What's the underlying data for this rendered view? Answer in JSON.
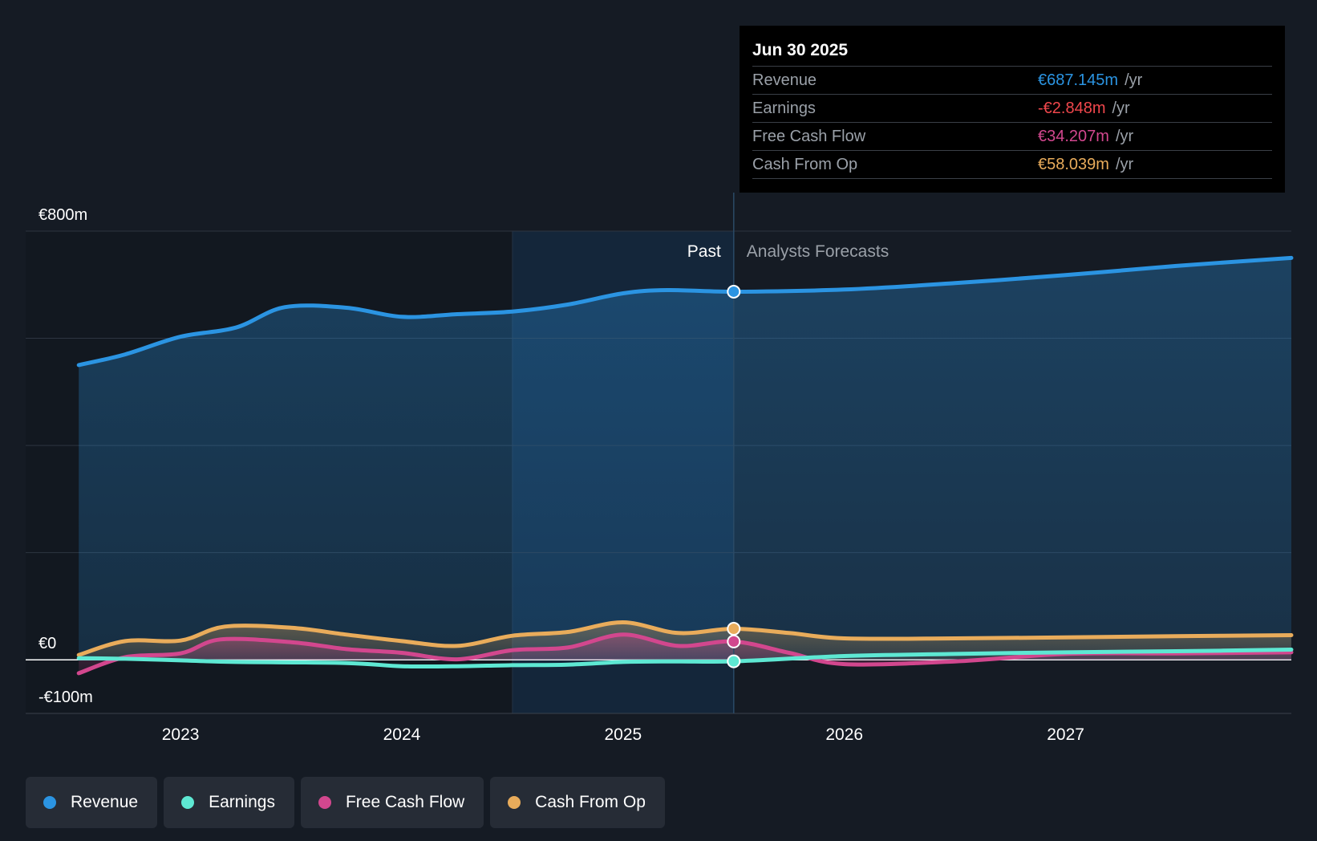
{
  "colors": {
    "revenue": "#2b94e2",
    "earnings": "#5ee8d3",
    "free_cash_flow": "#d2478e",
    "cash_from_op": "#e9ac5b",
    "earnings_value_text": "#f0474c"
  },
  "tooltip": {
    "date": "Jun 30 2025",
    "rows": [
      {
        "label": "Revenue",
        "value": "€687.145m",
        "unit": "/yr"
      },
      {
        "label": "Earnings",
        "value": "-€2.848m",
        "unit": "/yr"
      },
      {
        "label": "Free Cash Flow",
        "value": "€34.207m",
        "unit": "/yr"
      },
      {
        "label": "Cash From Op",
        "value": "€58.039m",
        "unit": "/yr"
      }
    ]
  },
  "labels": {
    "past": "Past",
    "forecast": "Analysts Forecasts"
  },
  "legend": [
    {
      "label": "Revenue",
      "series": "revenue"
    },
    {
      "label": "Earnings",
      "series": "earnings"
    },
    {
      "label": "Free Cash Flow",
      "series": "free_cash_flow"
    },
    {
      "label": "Cash From Op",
      "series": "cash_from_op"
    }
  ],
  "chart_data": {
    "type": "line",
    "y_tick_labels": [
      {
        "value": 800,
        "label": "€800m"
      },
      {
        "value": 0,
        "label": "€0"
      },
      {
        "value": -100,
        "label": "-€100m"
      }
    ],
    "ylim": [
      -100,
      800
    ],
    "y_gridlines": [
      800,
      600,
      400,
      200,
      0
    ],
    "x_ticks": [
      {
        "value": 2023.0,
        "label": "2023"
      },
      {
        "value": 2024.0,
        "label": "2024"
      },
      {
        "value": 2025.0,
        "label": "2025"
      },
      {
        "value": 2026.0,
        "label": "2026"
      },
      {
        "value": 2027.0,
        "label": "2027"
      }
    ],
    "xlim": [
      2022.3,
      2028.02
    ],
    "past_region_start": 2024.5,
    "forecast_start": 2025.5,
    "series": [
      {
        "name": "Revenue",
        "key": "revenue",
        "filled": true,
        "points": [
          [
            2022.54,
            550
          ],
          [
            2022.75,
            570
          ],
          [
            2023.0,
            603
          ],
          [
            2023.25,
            620
          ],
          [
            2023.47,
            658
          ],
          [
            2023.75,
            657
          ],
          [
            2024.0,
            640
          ],
          [
            2024.25,
            645
          ],
          [
            2024.5,
            650
          ],
          [
            2024.75,
            663
          ],
          [
            2025.0,
            684
          ],
          [
            2025.2,
            690
          ],
          [
            2025.5,
            687
          ],
          [
            2026.0,
            691
          ],
          [
            2026.5,
            703
          ],
          [
            2027.0,
            718
          ],
          [
            2027.5,
            735
          ],
          [
            2028.02,
            750
          ]
        ]
      },
      {
        "name": "Earnings",
        "key": "earnings",
        "points": [
          [
            2022.54,
            3
          ],
          [
            2022.75,
            2
          ],
          [
            2023.0,
            -1
          ],
          [
            2023.25,
            -4
          ],
          [
            2023.75,
            -6
          ],
          [
            2024.0,
            -12
          ],
          [
            2024.25,
            -12
          ],
          [
            2024.5,
            -10
          ],
          [
            2024.75,
            -9
          ],
          [
            2025.0,
            -4
          ],
          [
            2025.25,
            -3
          ],
          [
            2025.5,
            -2.8
          ],
          [
            2026.0,
            7
          ],
          [
            2026.5,
            11
          ],
          [
            2027.0,
            14
          ],
          [
            2027.5,
            16
          ],
          [
            2028.02,
            19
          ]
        ]
      },
      {
        "name": "Free Cash Flow",
        "key": "free_cash_flow",
        "points": [
          [
            2022.54,
            -25
          ],
          [
            2022.75,
            5
          ],
          [
            2023.0,
            12
          ],
          [
            2023.18,
            38
          ],
          [
            2023.5,
            33
          ],
          [
            2023.75,
            20
          ],
          [
            2024.0,
            13
          ],
          [
            2024.25,
            1
          ],
          [
            2024.5,
            18
          ],
          [
            2024.75,
            23
          ],
          [
            2025.0,
            47
          ],
          [
            2025.25,
            26
          ],
          [
            2025.5,
            34.2
          ],
          [
            2025.75,
            13
          ],
          [
            2026.0,
            -8
          ],
          [
            2026.5,
            -3
          ],
          [
            2027.0,
            11
          ],
          [
            2027.5,
            12
          ],
          [
            2028.02,
            14
          ]
        ]
      },
      {
        "name": "Cash From Op",
        "key": "cash_from_op",
        "filled": true,
        "points": [
          [
            2022.54,
            9
          ],
          [
            2022.75,
            35
          ],
          [
            2023.0,
            36
          ],
          [
            2023.2,
            62
          ],
          [
            2023.5,
            60
          ],
          [
            2023.75,
            47
          ],
          [
            2024.0,
            35
          ],
          [
            2024.25,
            26
          ],
          [
            2024.5,
            45
          ],
          [
            2024.75,
            52
          ],
          [
            2025.0,
            70
          ],
          [
            2025.25,
            50
          ],
          [
            2025.5,
            58
          ],
          [
            2025.75,
            50
          ],
          [
            2026.0,
            40
          ],
          [
            2026.5,
            40
          ],
          [
            2027.0,
            42
          ],
          [
            2027.5,
            44
          ],
          [
            2028.02,
            46
          ]
        ]
      }
    ]
  }
}
